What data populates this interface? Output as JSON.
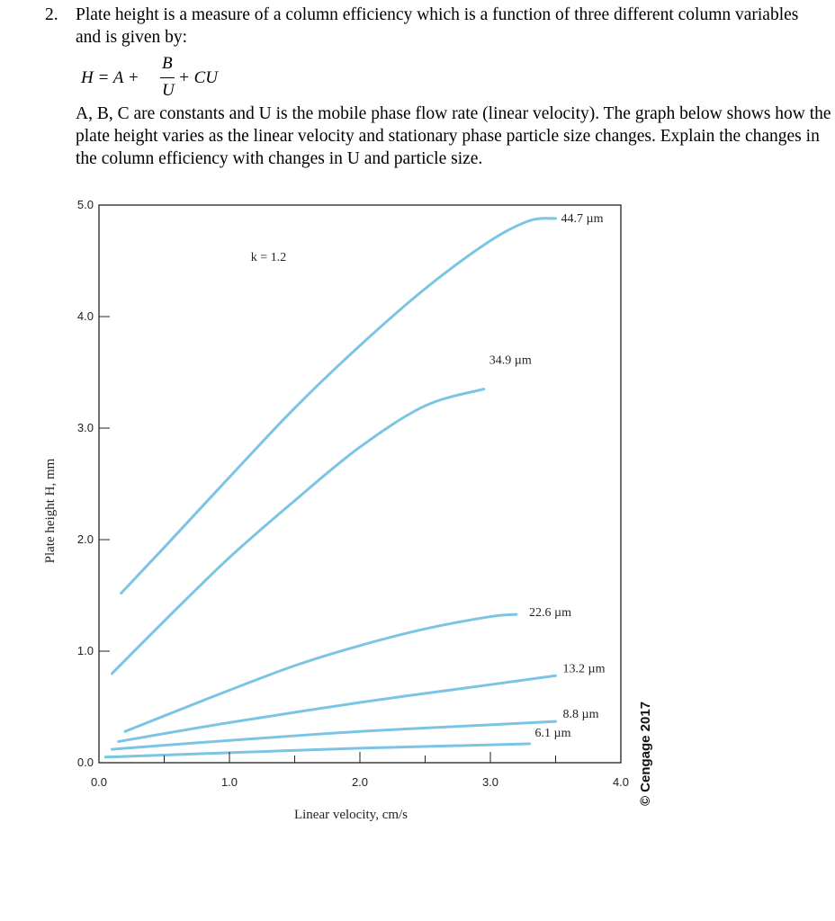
{
  "question": {
    "number": "2.",
    "intro": "Plate height is a measure of a column efficiency which is a function of three different column variables and is given by:",
    "formula": {
      "lhs": "H = A +",
      "numerator": "B",
      "denominator": "U",
      "tail": "+ CU"
    },
    "explanation": "A, B, C are constants and U is the mobile phase flow rate (linear velocity). The graph below shows how the plate height varies as the linear velocity and stationary phase particle size changes.  Explain the changes in the column efficiency with changes in U and particle size."
  },
  "chart_data": {
    "type": "line",
    "annotation": "k = 1.2",
    "xlabel": "Linear velocity, cm/s",
    "ylabel": "Plate height H, mm",
    "xlim": [
      0,
      4.0
    ],
    "ylim": [
      0,
      5.0
    ],
    "xticks": [
      "0.0",
      "1.0",
      "2.0",
      "3.0",
      "4.0"
    ],
    "yticks": [
      "0.0",
      "1.0",
      "2.0",
      "3.0",
      "4.0",
      "5.0"
    ],
    "line_color": "#7cc4e4",
    "watermark": "© Cengage 2017",
    "series": [
      {
        "name": "44.7 µm",
        "x": [
          0.17,
          0.5,
          1.0,
          1.5,
          2.0,
          2.5,
          3.0,
          3.3,
          3.5
        ],
        "y": [
          1.52,
          1.93,
          2.56,
          3.18,
          3.74,
          4.25,
          4.68,
          4.86,
          4.88
        ]
      },
      {
        "name": "34.9 µm",
        "x": [
          0.1,
          0.5,
          1.0,
          1.5,
          2.0,
          2.5,
          2.95
        ],
        "y": [
          0.8,
          1.27,
          1.84,
          2.35,
          2.83,
          3.2,
          3.35
        ]
      },
      {
        "name": "22.6 µm",
        "x": [
          0.2,
          0.5,
          1.0,
          1.5,
          2.0,
          2.5,
          3.0,
          3.2
        ],
        "y": [
          0.28,
          0.42,
          0.65,
          0.87,
          1.05,
          1.2,
          1.31,
          1.33
        ]
      },
      {
        "name": "13.2 µm",
        "x": [
          0.15,
          1.0,
          2.0,
          3.0,
          3.5
        ],
        "y": [
          0.19,
          0.36,
          0.54,
          0.7,
          0.78
        ]
      },
      {
        "name": "8.8 µm",
        "x": [
          0.1,
          1.0,
          2.0,
          3.0,
          3.5
        ],
        "y": [
          0.12,
          0.2,
          0.28,
          0.34,
          0.37
        ]
      },
      {
        "name": "6.1 µm",
        "x": [
          0.05,
          1.0,
          2.0,
          3.0,
          3.3
        ],
        "y": [
          0.05,
          0.09,
          0.13,
          0.16,
          0.17
        ]
      }
    ]
  }
}
